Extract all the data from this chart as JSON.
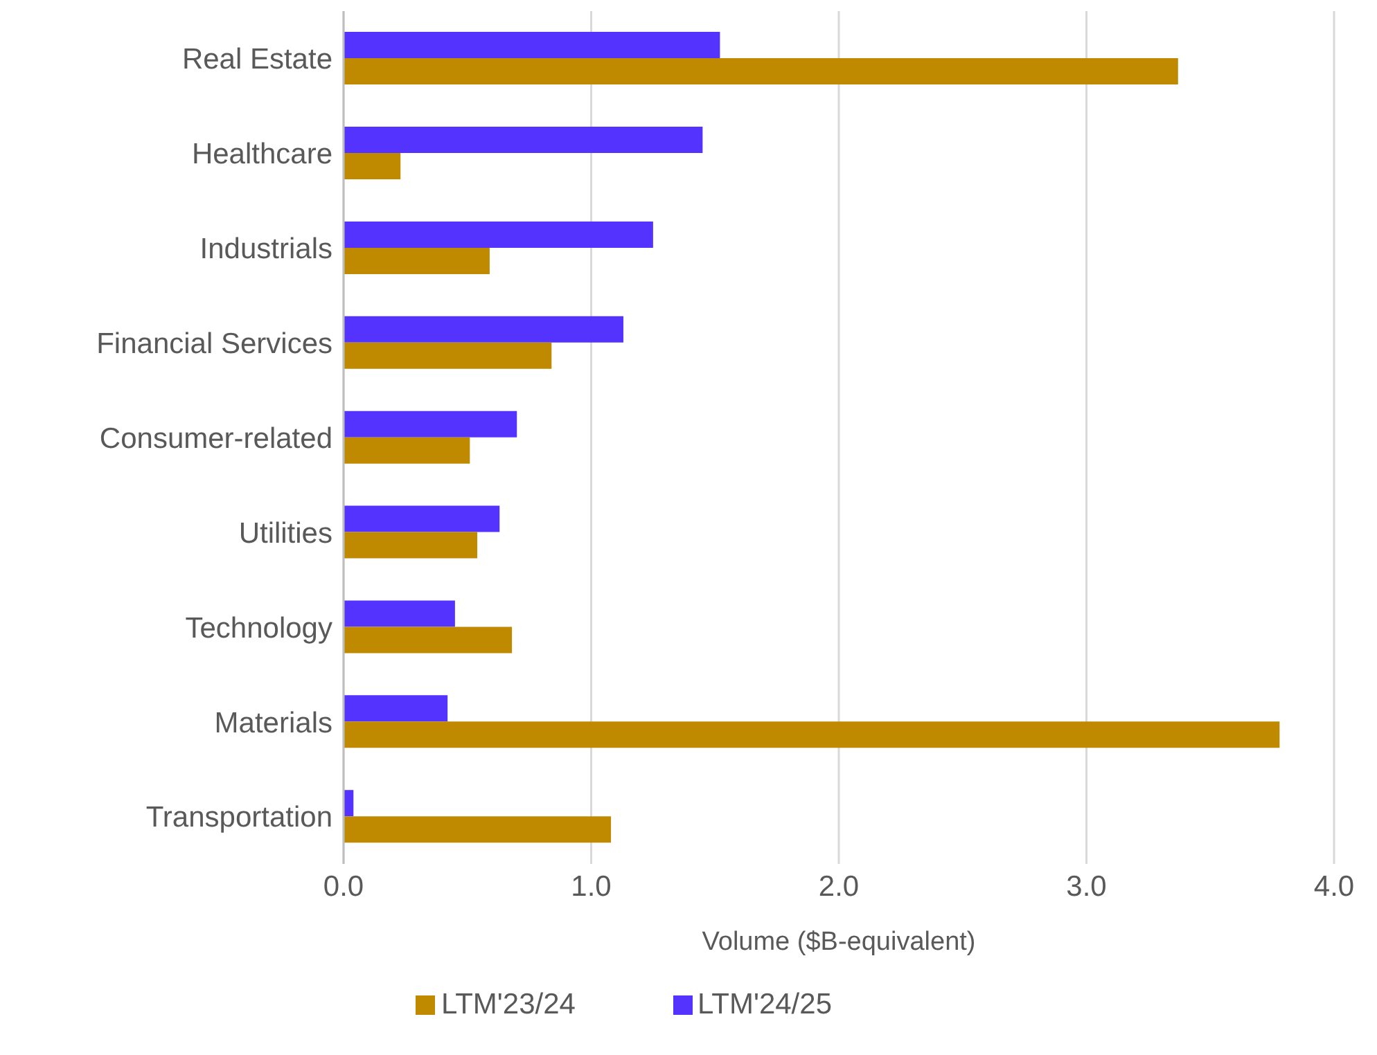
{
  "chart_data": {
    "type": "bar",
    "orientation": "horizontal",
    "xlabel": "Volume ($B-equivalent)",
    "categories": [
      "Real Estate",
      "Healthcare",
      "Industrials",
      "Financial Services",
      "Consumer-related",
      "Utilities",
      "Technology",
      "Materials",
      "Transportation"
    ],
    "series": [
      {
        "name": "LTM'24/25",
        "color": "#5433ff",
        "values": [
          1.52,
          1.45,
          1.25,
          1.13,
          0.7,
          0.63,
          0.45,
          0.42,
          0.04
        ]
      },
      {
        "name": "LTM'23/24",
        "color": "#bf8a00",
        "values": [
          3.37,
          0.23,
          0.59,
          0.84,
          0.51,
          0.54,
          0.68,
          3.78,
          1.08
        ]
      }
    ],
    "xlim": [
      0,
      4
    ],
    "xticks": [
      {
        "value": 0,
        "label": "0.0"
      },
      {
        "value": 1,
        "label": "1.0"
      },
      {
        "value": 2,
        "label": "2.0"
      },
      {
        "value": 3,
        "label": "3.0"
      },
      {
        "value": 4,
        "label": "4.0"
      }
    ],
    "grid": "x",
    "legend": "bottom"
  }
}
